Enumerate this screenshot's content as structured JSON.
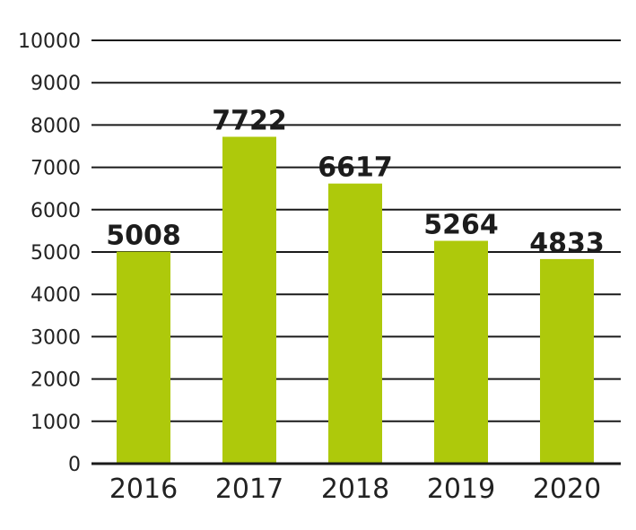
{
  "chart_data": {
    "type": "bar",
    "categories": [
      "2016",
      "2017",
      "2018",
      "2019",
      "2020"
    ],
    "values": [
      5008,
      7722,
      6617,
      5264,
      4833
    ],
    "data_labels": [
      "5008",
      "7722",
      "6617",
      "5264",
      "4833"
    ],
    "yticks": [
      "0",
      "1000",
      "2000",
      "3000",
      "4000",
      "5000",
      "6000",
      "7000",
      "8000",
      "9000",
      "10000"
    ],
    "ylim": [
      0,
      10000
    ],
    "title": "",
    "xlabel": "",
    "ylabel": "",
    "grid": true,
    "legend": "none",
    "bar_color": "#aec90b"
  }
}
